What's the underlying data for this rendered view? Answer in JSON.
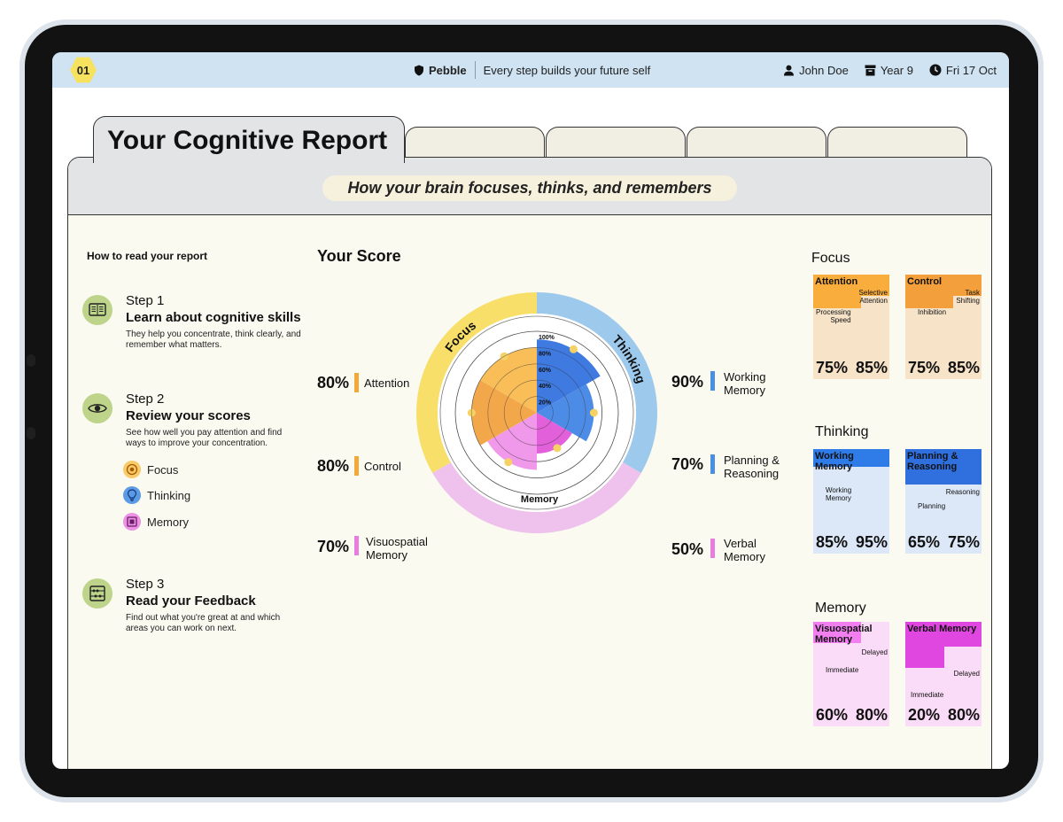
{
  "header": {
    "badge": "01",
    "brand": "Pebble",
    "tagline": "Every step builds your future self",
    "user": "John Doe",
    "year": "Year 9",
    "date": "Fri 17 Oct"
  },
  "report": {
    "title": "Your Cognitive Report",
    "subtitle": "How your brain focuses, thinks, and remembers"
  },
  "guide": {
    "heading": "How to read your report",
    "steps": [
      {
        "label": "Step 1",
        "title": "Learn about cognitive skills",
        "desc": "They help you concentrate, think clearly, and remember what matters.",
        "icon": "book-icon"
      },
      {
        "label": "Step 2",
        "title": "Review your scores",
        "desc": "See how well you pay attention and find ways to improve your concentration.",
        "icon": "eye-icon"
      },
      {
        "label": "Step 3",
        "title": "Read your Feedback",
        "desc": "Find out what you're great at and which areas you can work on next.",
        "icon": "abacus-icon"
      }
    ],
    "legend": [
      {
        "label": "Focus",
        "color": "#f2a93a",
        "icon": "target-icon"
      },
      {
        "label": "Thinking",
        "color": "#4a90e2",
        "icon": "lightbulb-icon"
      },
      {
        "label": "Memory",
        "color": "#e77de0",
        "icon": "memory-icon"
      }
    ]
  },
  "score": {
    "heading": "Your Score",
    "left": [
      {
        "pct": "80%",
        "label": "Attention",
        "color": "#f2a93a"
      },
      {
        "pct": "80%",
        "label": "Control",
        "color": "#f2a93a"
      },
      {
        "pct": "70%",
        "label": "Visuospatial\nMemory",
        "color": "#e77de0"
      }
    ],
    "right": [
      {
        "pct": "90%",
        "label": "Working\nMemory",
        "color": "#4a90e2"
      },
      {
        "pct": "70%",
        "label": "Planning &\nReasoning",
        "color": "#4a90e2"
      },
      {
        "pct": "50%",
        "label": "Verbal\nMemory",
        "color": "#e77de0"
      }
    ]
  },
  "chart_data": {
    "type": "radar",
    "rings": [
      "20%",
      "40%",
      "60%",
      "80%",
      "100%"
    ],
    "groups": [
      {
        "name": "Focus",
        "color": "#f7df6a"
      },
      {
        "name": "Thinking",
        "color": "#9cc9ec"
      },
      {
        "name": "Memory",
        "color": "#eec2ec"
      }
    ],
    "series": [
      {
        "name": "Working Memory",
        "value": 90,
        "color": "#2f6fde"
      },
      {
        "name": "Planning & Reasoning",
        "value": 70,
        "color": "#3e82e4"
      },
      {
        "name": "Verbal Memory",
        "value": 50,
        "color": "#e054d8"
      },
      {
        "name": "Visuospatial Memory",
        "value": 70,
        "color": "#ef8fe8"
      },
      {
        "name": "Control",
        "value": 80,
        "color": "#f2a03c"
      },
      {
        "name": "Attention",
        "value": 80,
        "color": "#f8b84a"
      }
    ]
  },
  "breakdown": {
    "groups": [
      {
        "title": "Focus",
        "cards": [
          {
            "title": "Attention",
            "sub_top": "Selective\nAttention",
            "sub_bottom": "Processing\nSpeed",
            "v1": "75%",
            "v2": "85%",
            "dark": "#f8ad3c",
            "light": "#f6e3c8"
          },
          {
            "title": "Control",
            "sub_top": "Task\nShifting",
            "sub_bottom": "Inhibition",
            "v1": "75%",
            "v2": "85%",
            "dark": "#f3a03c",
            "light": "#f6e3c8"
          }
        ]
      },
      {
        "title": "Thinking",
        "cards": [
          {
            "title": "Working\nMemory",
            "sub_top": "",
            "sub_bottom": "Working\nMemory",
            "v1": "85%",
            "v2": "95%",
            "dark": "#2f7be8",
            "light": "#dce8f8"
          },
          {
            "title": "Planning &\nReasoning",
            "sub_top": "Reasoning",
            "sub_bottom": "Planning",
            "v1": "65%",
            "v2": "75%",
            "dark": "#2f6fde",
            "light": "#dce8f8"
          }
        ]
      },
      {
        "title": "Memory",
        "cards": [
          {
            "title": "Visuospatial\nMemory",
            "sub_top": "Delayed",
            "sub_bottom": "Immediate",
            "v1": "60%",
            "v2": "80%",
            "dark": "#f17ff0",
            "light": "#fbdcf8"
          },
          {
            "title": "Verbal Memory",
            "sub_top": "Delayed",
            "sub_bottom": "Immediate",
            "v1": "20%",
            "v2": "80%",
            "dark": "#e046e0",
            "light": "#fbdcf8"
          }
        ]
      }
    ]
  }
}
